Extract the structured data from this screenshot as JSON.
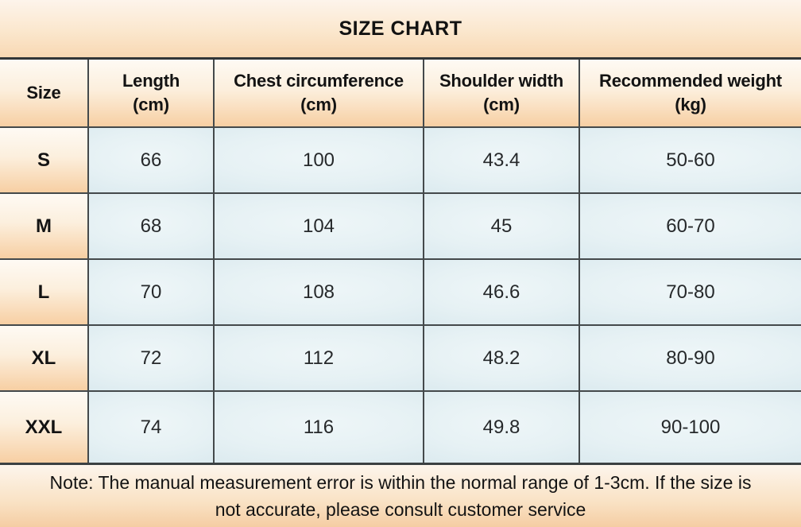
{
  "chart_data": {
    "type": "table",
    "title": "SIZE CHART",
    "columns": [
      {
        "label": "Size",
        "unit": ""
      },
      {
        "label": "Length",
        "unit": "(cm)"
      },
      {
        "label": "Chest circumference",
        "unit": "(cm)"
      },
      {
        "label": "Shoulder width",
        "unit": "(cm)"
      },
      {
        "label": "Recommended weight",
        "unit": "(kg)"
      }
    ],
    "rows": [
      {
        "size": "S",
        "length": "66",
        "chest": "100",
        "shoulder": "43.4",
        "weight": "50-60"
      },
      {
        "size": "M",
        "length": "68",
        "chest": "104",
        "shoulder": "45",
        "weight": "60-70"
      },
      {
        "size": "L",
        "length": "70",
        "chest": "108",
        "shoulder": "46.6",
        "weight": "70-80"
      },
      {
        "size": "XL",
        "length": "72",
        "chest": "112",
        "shoulder": "48.2",
        "weight": "80-90"
      },
      {
        "size": "XXL",
        "length": "74",
        "chest": "116",
        "shoulder": "49.8",
        "weight": "90-100"
      }
    ]
  },
  "note": {
    "line1": "Note: The manual measurement error is within the normal range of 1-3cm. If the size is",
    "line2": "not accurate, please consult customer service"
  },
  "colors": {
    "peach_top": "#fefaf4",
    "peach_bottom": "#f7cfa3",
    "blue_cell": "#dbeaef",
    "blue_cell_highlight": "#eef6f8",
    "grid_border": "#44494b",
    "text": "#131313"
  }
}
